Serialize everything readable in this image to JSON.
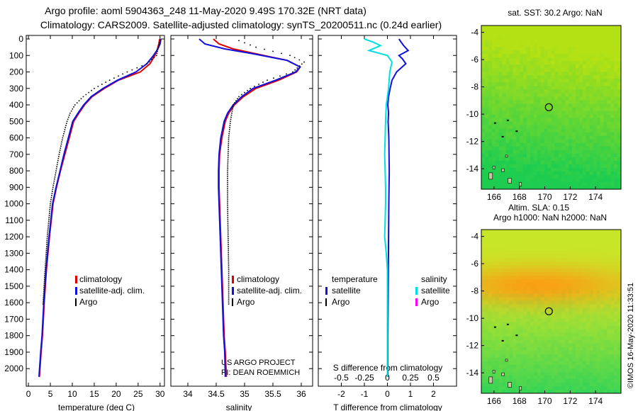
{
  "header": {
    "title_line1": "Argo profile: aoml 5904363_248 11-May-2020 9.49S 170.32E (NRT data)",
    "title_line2": "Climatology: CARS2009. Satellite-adjusted climatology: synTS_20200511.nc (0.24d earlier)"
  },
  "colors": {
    "climatology": "#e00000",
    "satellite_adj": "#1010e0",
    "argo": "#000000",
    "t_diff": "#1010e0",
    "s_diff": "#00e0e0",
    "s_argo": "#ff00ff"
  },
  "chart_data": [
    {
      "id": "temperature",
      "type": "line",
      "xlabel": "temperature (deg C)",
      "ylabel": "",
      "xlim": [
        -0.5,
        31
      ],
      "ylim": [
        2070,
        0
      ],
      "xticks": [
        0,
        5,
        10,
        15,
        20,
        25,
        30
      ],
      "xtick_labels": [
        "0",
        "5",
        "10",
        "15",
        "20",
        "25",
        "30"
      ],
      "yticks": [
        0,
        100,
        200,
        300,
        400,
        500,
        600,
        700,
        800,
        900,
        1000,
        1100,
        1200,
        1300,
        1400,
        1500,
        1600,
        1700,
        1800,
        1900,
        2000
      ],
      "legend": [
        "climatology",
        "satellite-adj. clim.",
        "Argo"
      ],
      "series": [
        {
          "name": "climatology",
          "style": "solid",
          "color": "climatology",
          "points": [
            [
              29.9,
              0
            ],
            [
              29.7,
              30
            ],
            [
              29.4,
              60
            ],
            [
              28.8,
              100
            ],
            [
              27.7,
              150
            ],
            [
              25.5,
              200
            ],
            [
              20.5,
              250
            ],
            [
              17.3,
              300
            ],
            [
              14.5,
              350
            ],
            [
              12.8,
              400
            ],
            [
              11.5,
              450
            ],
            [
              10.3,
              500
            ],
            [
              9.3,
              600
            ],
            [
              8.3,
              700
            ],
            [
              7.3,
              800
            ],
            [
              6.4,
              900
            ],
            [
              5.6,
              1000
            ],
            [
              4.8,
              1200
            ],
            [
              4.1,
              1400
            ],
            [
              3.6,
              1600
            ],
            [
              3.2,
              1800
            ],
            [
              2.9,
              1900
            ],
            [
              2.5,
              2050
            ]
          ]
        },
        {
          "name": "satellite-adj. clim.",
          "style": "solid",
          "color": "satellite_adj",
          "points": [
            [
              30.2,
              0
            ],
            [
              30.0,
              30
            ],
            [
              29.5,
              60
            ],
            [
              28.5,
              100
            ],
            [
              27.0,
              150
            ],
            [
              24.5,
              200
            ],
            [
              20.3,
              250
            ],
            [
              17.0,
              300
            ],
            [
              14.3,
              350
            ],
            [
              12.6,
              400
            ],
            [
              11.3,
              450
            ],
            [
              10.1,
              500
            ],
            [
              9.1,
              600
            ],
            [
              8.1,
              700
            ],
            [
              7.2,
              800
            ],
            [
              6.3,
              900
            ],
            [
              5.5,
              1000
            ],
            [
              4.7,
              1200
            ],
            [
              4.0,
              1400
            ],
            [
              3.5,
              1600
            ],
            [
              3.1,
              1800
            ],
            [
              2.8,
              1900
            ],
            [
              2.4,
              2050
            ]
          ]
        },
        {
          "name": "Argo",
          "style": "dotted",
          "color": "argo",
          "points": [
            [
              30.0,
              10
            ],
            [
              29.6,
              50
            ],
            [
              29.2,
              100
            ],
            [
              27.0,
              150
            ],
            [
              22.5,
              200
            ],
            [
              18.5,
              250
            ],
            [
              15.0,
              300
            ],
            [
              12.5,
              350
            ],
            [
              10.6,
              400
            ],
            [
              9.5,
              450
            ],
            [
              8.8,
              500
            ],
            [
              7.8,
              600
            ],
            [
              7.0,
              700
            ],
            [
              6.3,
              800
            ],
            [
              5.6,
              900
            ],
            [
              5.0,
              1000
            ],
            [
              4.3,
              1200
            ],
            [
              3.8,
              1400
            ],
            [
              3.3,
              1620
            ]
          ]
        }
      ]
    },
    {
      "id": "salinity",
      "type": "line",
      "xlabel": "salinity",
      "ylabel": "",
      "xlim": [
        33.7,
        36.2
      ],
      "ylim": [
        2070,
        0
      ],
      "xticks": [
        34,
        34.5,
        35,
        35.5,
        36
      ],
      "xtick_labels": [
        "34",
        "34.5",
        "35",
        "35.5",
        "36"
      ],
      "yticks": [
        0,
        100,
        200,
        300,
        400,
        500,
        600,
        700,
        800,
        900,
        1000,
        1100,
        1200,
        1300,
        1400,
        1500,
        1600,
        1700,
        1800,
        1900,
        2000
      ],
      "legend": [
        "climatology",
        "satellite-adj. clim.",
        "Argo"
      ],
      "annotation": [
        "US ARGO PROJECT",
        "PI: DEAN ROEMMICH"
      ],
      "series": [
        {
          "name": "climatology",
          "style": "solid",
          "color": "climatology",
          "points": [
            [
              34.45,
              0
            ],
            [
              34.55,
              30
            ],
            [
              34.8,
              60
            ],
            [
              35.2,
              90
            ],
            [
              35.75,
              130
            ],
            [
              35.98,
              170
            ],
            [
              35.92,
              200
            ],
            [
              35.6,
              250
            ],
            [
              35.2,
              300
            ],
            [
              34.98,
              350
            ],
            [
              34.82,
              400
            ],
            [
              34.72,
              450
            ],
            [
              34.66,
              500
            ],
            [
              34.6,
              600
            ],
            [
              34.56,
              700
            ],
            [
              34.55,
              800
            ],
            [
              34.55,
              900
            ],
            [
              34.56,
              1000
            ],
            [
              34.58,
              1200
            ],
            [
              34.6,
              1400
            ],
            [
              34.62,
              1600
            ],
            [
              34.64,
              1800
            ],
            [
              34.66,
              1900
            ],
            [
              34.68,
              2050
            ]
          ]
        },
        {
          "name": "satellite-adj. clim.",
          "style": "solid",
          "color": "satellite_adj",
          "points": [
            [
              34.2,
              0
            ],
            [
              34.3,
              30
            ],
            [
              34.65,
              60
            ],
            [
              35.15,
              90
            ],
            [
              35.75,
              130
            ],
            [
              35.98,
              170
            ],
            [
              35.9,
              200
            ],
            [
              35.55,
              250
            ],
            [
              35.15,
              300
            ],
            [
              34.95,
              350
            ],
            [
              34.8,
              400
            ],
            [
              34.7,
              450
            ],
            [
              34.64,
              500
            ],
            [
              34.58,
              600
            ],
            [
              34.55,
              700
            ],
            [
              34.54,
              800
            ],
            [
              34.54,
              900
            ],
            [
              34.55,
              1000
            ],
            [
              34.57,
              1200
            ],
            [
              34.59,
              1400
            ],
            [
              34.61,
              1600
            ],
            [
              34.63,
              1800
            ],
            [
              34.65,
              1900
            ],
            [
              34.66,
              2050
            ]
          ]
        },
        {
          "name": "Argo",
          "style": "dotted",
          "color": "argo",
          "points": [
            [
              34.9,
              10
            ],
            [
              35.2,
              50
            ],
            [
              35.8,
              100
            ],
            [
              36.05,
              140
            ],
            [
              35.85,
              200
            ],
            [
              35.4,
              250
            ],
            [
              35.1,
              300
            ],
            [
              34.9,
              350
            ],
            [
              34.8,
              400
            ],
            [
              34.75,
              500
            ],
            [
              34.72,
              600
            ],
            [
              34.7,
              800
            ],
            [
              34.7,
              1000
            ],
            [
              34.71,
              1200
            ],
            [
              34.72,
              1400
            ],
            [
              34.72,
              1620
            ]
          ]
        }
      ]
    },
    {
      "id": "difference",
      "type": "line",
      "xlabel": "T difference from climatology",
      "xlabel_top": "S difference from climatology",
      "ylabel": "",
      "xlim": [
        -3,
        3
      ],
      "ylim": [
        2070,
        0
      ],
      "xticks": [
        -2,
        -1,
        0,
        1,
        2
      ],
      "xtick_labels": [
        "-2",
        "-1",
        "0",
        "1",
        "2"
      ],
      "s_xticks": [
        -0.5,
        -0.25,
        0,
        0.25,
        0.5
      ],
      "s_xtick_labels": [
        "-0.5",
        "-0.25",
        "0",
        "0.25",
        "0.5"
      ],
      "yticks": [
        0,
        100,
        200,
        300,
        400,
        500,
        600,
        700,
        800,
        900,
        1000,
        1100,
        1200,
        1300,
        1400,
        1500,
        1600,
        1700,
        1800,
        1900,
        2000
      ],
      "legend_t": {
        "header": "temperature",
        "items": [
          "satellite",
          "Argo"
        ]
      },
      "legend_s": {
        "header": "salinity",
        "items": [
          "satellite",
          "Argo"
        ]
      },
      "series": [
        {
          "name": "temperature satellite",
          "style": "solid",
          "color": "t_diff",
          "points": [
            [
              0.5,
              0
            ],
            [
              0.6,
              20
            ],
            [
              0.7,
              40
            ],
            [
              0.9,
              70
            ],
            [
              0.5,
              100
            ],
            [
              0.65,
              120
            ],
            [
              0.8,
              150
            ],
            [
              0.4,
              200
            ],
            [
              0.2,
              250
            ],
            [
              0.12,
              300
            ],
            [
              0.05,
              350
            ],
            [
              0.02,
              400
            ],
            [
              0.05,
              450
            ],
            [
              0.03,
              500
            ],
            [
              0.06,
              600
            ],
            [
              0.07,
              700
            ],
            [
              0.08,
              800
            ],
            [
              0.07,
              900
            ],
            [
              0.06,
              1000
            ],
            [
              0.05,
              1200
            ],
            [
              0.04,
              1400
            ],
            [
              0.03,
              1600
            ],
            [
              0.02,
              1800
            ],
            [
              0.02,
              2050
            ]
          ]
        },
        {
          "name": "salinity satellite",
          "style": "solid",
          "color": "s_diff",
          "points": [
            [
              -1.0,
              0
            ],
            [
              -0.6,
              20
            ],
            [
              -0.3,
              40
            ],
            [
              -0.8,
              70
            ],
            [
              0.0,
              100
            ],
            [
              0.2,
              140
            ],
            [
              0.1,
              200
            ],
            [
              0.05,
              300
            ],
            [
              -0.05,
              400
            ],
            [
              -0.08,
              500
            ],
            [
              -0.1,
              600
            ],
            [
              -0.12,
              700
            ],
            [
              -0.1,
              800
            ],
            [
              -0.08,
              900
            ],
            [
              -0.08,
              1000
            ],
            [
              -0.1,
              1100
            ],
            [
              -0.12,
              1200
            ],
            [
              -0.05,
              1300
            ],
            [
              0.0,
              1400
            ],
            [
              0.0,
              1600
            ],
            [
              0.0,
              1800
            ],
            [
              0.0,
              2050
            ]
          ]
        }
      ]
    }
  ],
  "maps": [
    {
      "id": "sst-map",
      "title": "sat. SST: 30.2  Argo: NaN",
      "xticks": [
        166,
        168,
        170,
        172,
        174
      ],
      "yticks": [
        -4,
        -6,
        -8,
        -10,
        -12,
        -14
      ],
      "lon_range": [
        165,
        176
      ],
      "lat_range": [
        -15.5,
        -3.5
      ],
      "marker": [
        170.32,
        -9.49
      ]
    },
    {
      "id": "sla-map",
      "title": "Altim. SLA: 0.15",
      "subtitle": "Argo h1000: NaN h2000: NaN",
      "xticks": [
        166,
        168,
        170,
        172,
        174
      ],
      "yticks": [
        -4,
        -6,
        -8,
        -10,
        -12,
        -14
      ],
      "lon_range": [
        165,
        176
      ],
      "lat_range": [
        -15.5,
        -3.5
      ],
      "marker": [
        170.32,
        -9.49
      ]
    }
  ],
  "footer": {
    "credit": "©IMOS 16-May-2020 11:33:51"
  }
}
